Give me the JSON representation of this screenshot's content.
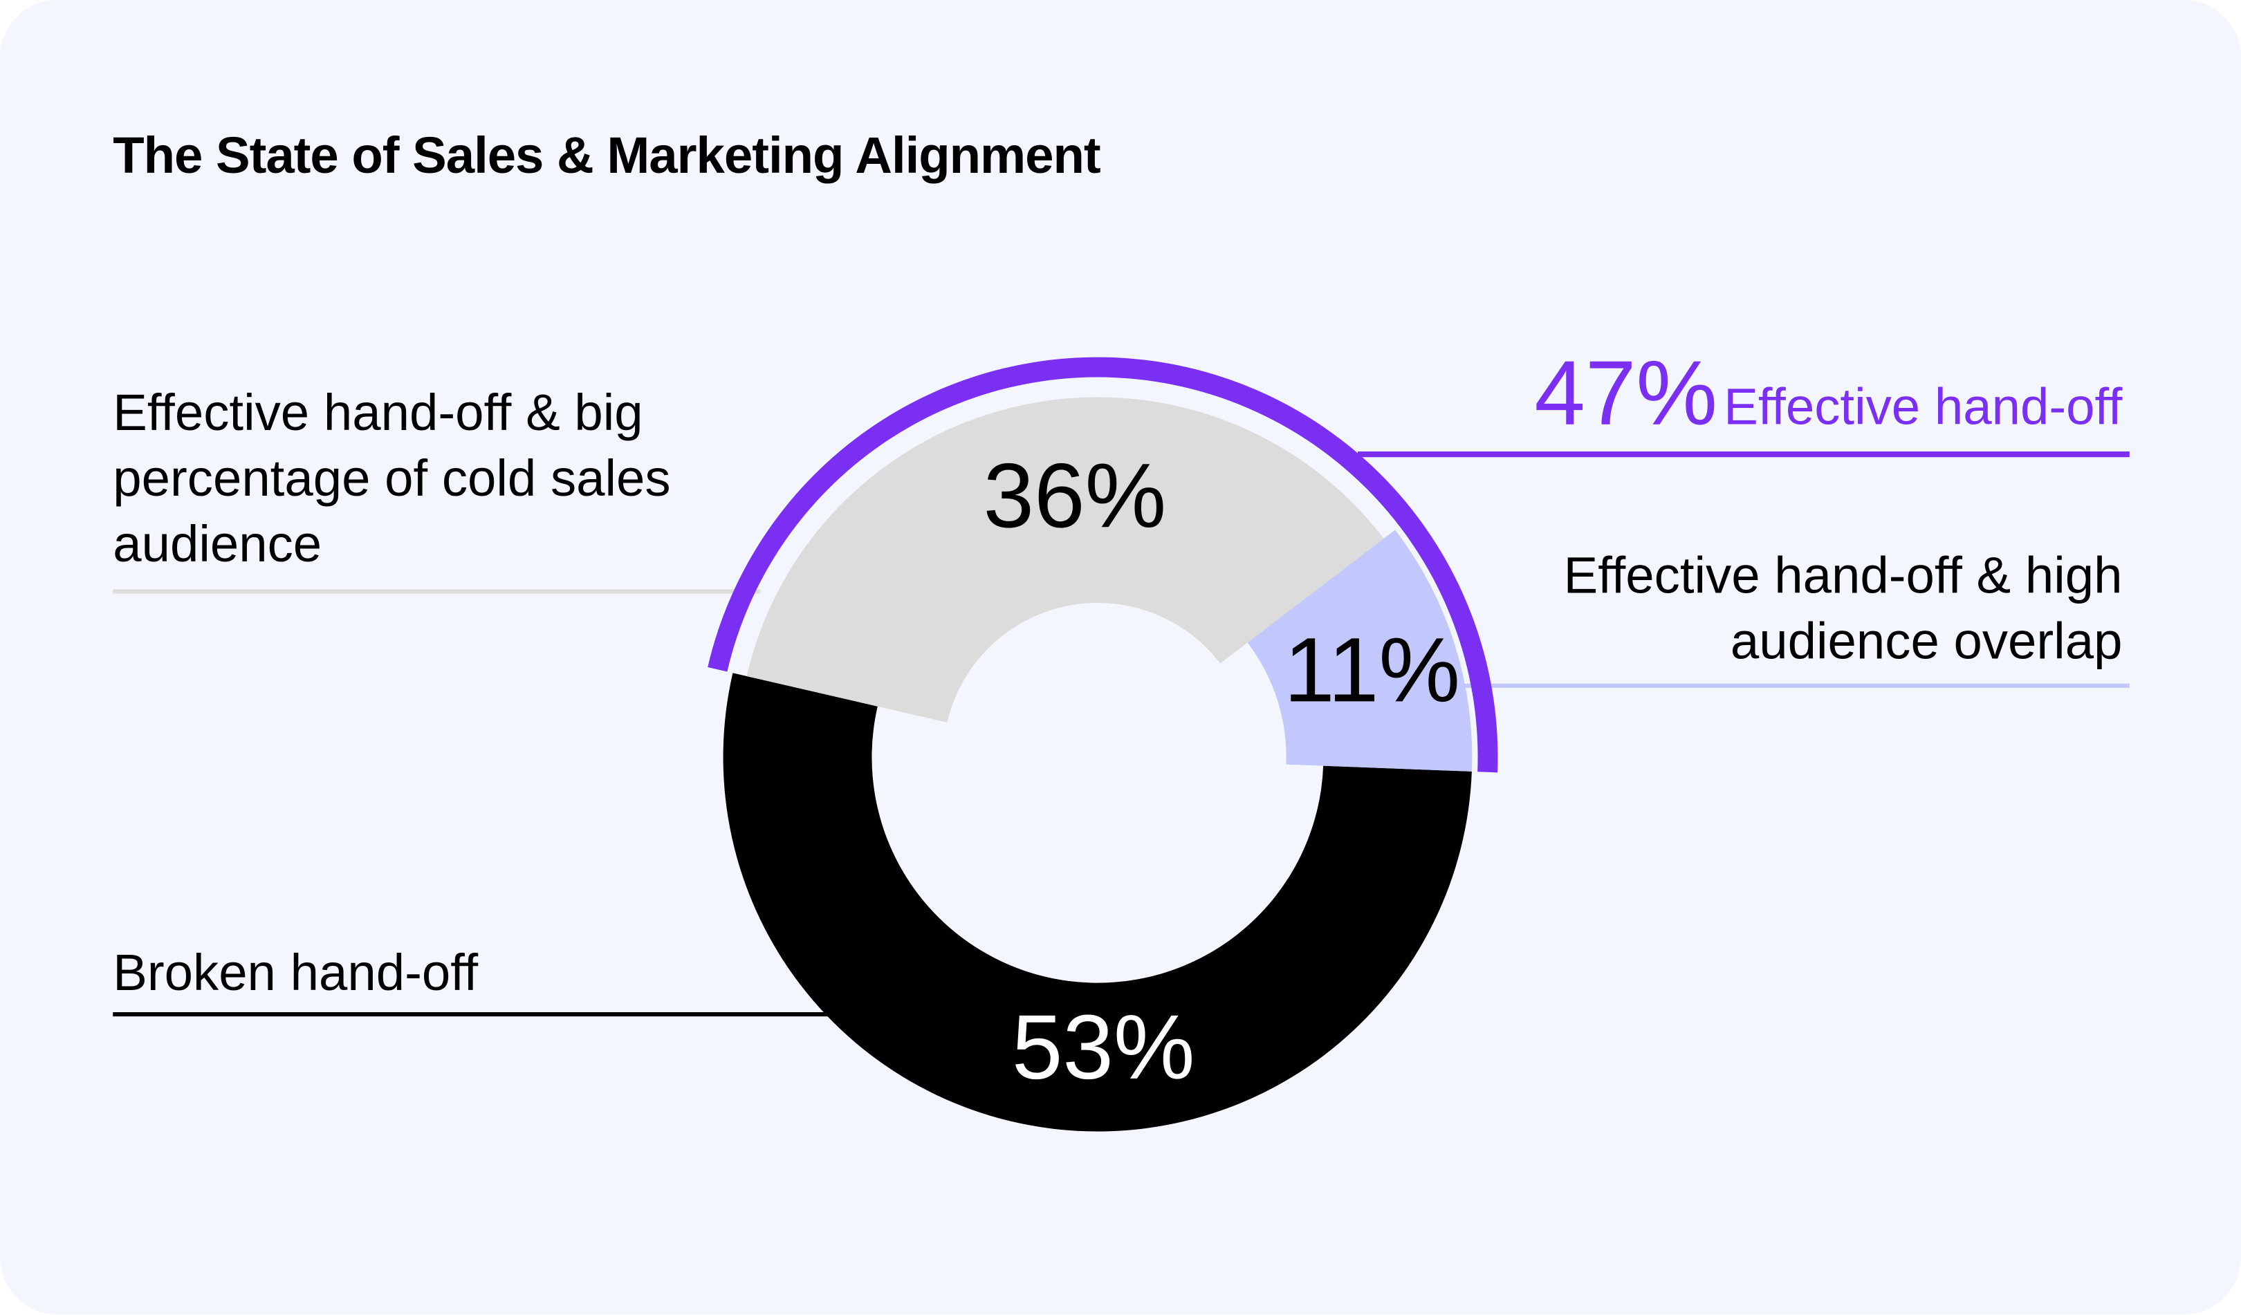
{
  "chart_data": {
    "type": "donut",
    "title": "The State of Sales & Marketing Alignment",
    "categories": [
      "Broken hand-off",
      "Effective hand-off & big percentage of cold sales audience",
      "Effective hand-off & high audience overlap"
    ],
    "values": [
      53,
      36,
      11
    ],
    "value_labels": [
      "53%",
      "36%",
      "11%"
    ],
    "colors": [
      "#000000",
      "#dcdcdc",
      "#c2c8fb"
    ],
    "group": {
      "name": "Effective hand-off",
      "value": 47,
      "value_label": "47%",
      "color": "#7b2ff2"
    }
  }
}
